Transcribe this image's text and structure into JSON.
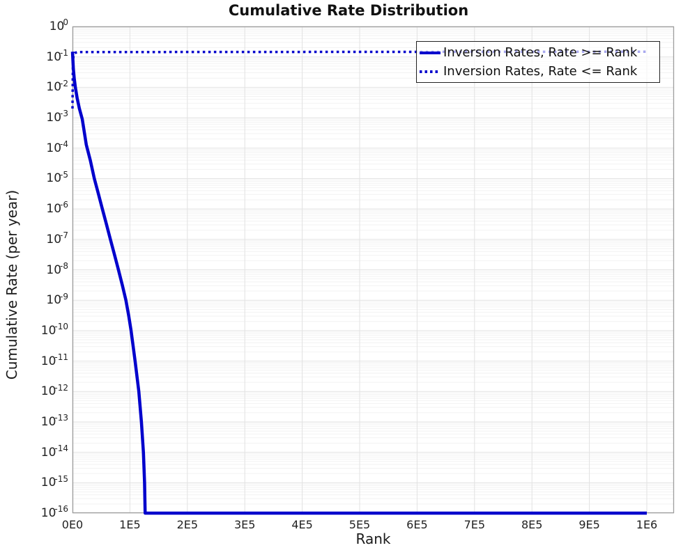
{
  "title": "Cumulative Rate Distribution",
  "colors": {
    "line_blue": "#0000cc",
    "grid_major": "#e2e2e2",
    "grid_minor": "#f2f2f2",
    "frame": "#9e9e9e",
    "text": "#1a1a1a",
    "legend_border": "#222222"
  },
  "chart_data": {
    "type": "line",
    "title": "Cumulative Rate Distribution",
    "xlabel": "Rank",
    "ylabel": "Cumulative Rate (per year)",
    "xscale": "linear",
    "yscale": "log10",
    "xlim": [
      0,
      1047000
    ],
    "ylim": [
      1e-16,
      1
    ],
    "grid": true,
    "legend_position": "top-right",
    "x_ticks": {
      "values": [
        0,
        100000,
        200000,
        300000,
        400000,
        500000,
        600000,
        700000,
        800000,
        900000,
        1000000
      ],
      "labels": [
        "0E0",
        "1E5",
        "2E5",
        "3E5",
        "4E5",
        "5E5",
        "6E5",
        "7E5",
        "8E5",
        "9E5",
        "1E6"
      ]
    },
    "y_ticks": {
      "base": "10",
      "exponents": [
        "0",
        "-1",
        "-2",
        "-3",
        "-4",
        "-5",
        "-6",
        "-7",
        "-8",
        "-9",
        "-10",
        "-11",
        "-12",
        "-13",
        "-14",
        "-15",
        "-16"
      ]
    },
    "series": [
      {
        "name": "Inversion Rates, Rate >= Rank",
        "style": "solid",
        "color": "#0000cc",
        "points": [
          [
            0,
            0.148
          ],
          [
            1500,
            0.04
          ],
          [
            3000,
            0.02
          ],
          [
            5000,
            0.01
          ],
          [
            8000,
            0.0045
          ],
          [
            12000,
            0.002
          ],
          [
            17000,
            0.0009
          ],
          [
            24000,
            0.00013
          ],
          [
            31000,
            4e-05
          ],
          [
            38000,
            1e-05
          ],
          [
            45000,
            3.2e-06
          ],
          [
            52000,
            1e-06
          ],
          [
            59000,
            3.2e-07
          ],
          [
            66000,
            1e-07
          ],
          [
            73000,
            3.2e-08
          ],
          [
            80000,
            1e-08
          ],
          [
            87000,
            3e-09
          ],
          [
            93000,
            1e-09
          ],
          [
            98000,
            3e-10
          ],
          [
            102000,
            1e-10
          ],
          [
            109000,
            1e-11
          ],
          [
            115500,
            1e-12
          ],
          [
            120000,
            1e-13
          ],
          [
            123500,
            1e-14
          ],
          [
            125500,
            1e-15
          ],
          [
            126500,
            1e-16
          ],
          [
            1000000,
            1e-16
          ]
        ]
      },
      {
        "name": "Inversion Rates, Rate <= Rank",
        "style": "dotted",
        "color": "#0000cc",
        "points": [
          [
            0,
            0.002
          ],
          [
            600,
            0.04
          ],
          [
            1500,
            0.1
          ],
          [
            4000,
            0.135
          ],
          [
            10000,
            0.144
          ],
          [
            1000000,
            0.148
          ]
        ]
      }
    ]
  }
}
